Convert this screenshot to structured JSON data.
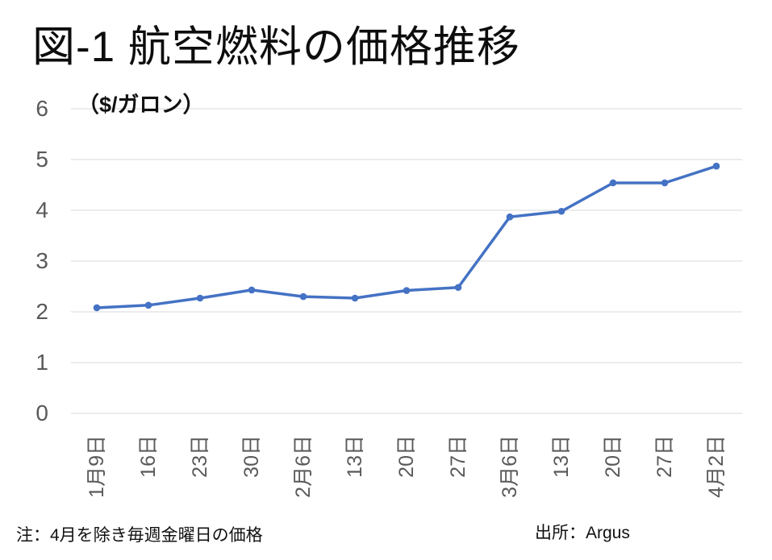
{
  "chart_data": {
    "type": "line",
    "title": "図-1 航空燃料の価格推移",
    "unit_label": "（$/ガロン）",
    "categories": [
      "1月9日",
      "16日",
      "23日",
      "30日",
      "2月6日",
      "13日",
      "20日",
      "27日",
      "3月6日",
      "13日",
      "20日",
      "27日",
      "4月2日"
    ],
    "values": [
      2.08,
      2.13,
      2.27,
      2.43,
      2.3,
      2.27,
      2.42,
      2.48,
      3.87,
      3.98,
      4.54,
      4.54,
      4.87
    ],
    "ylim": [
      0,
      6
    ],
    "yticks": [
      0,
      1,
      2,
      3,
      4,
      5,
      6
    ],
    "grid": true,
    "legend": "none",
    "line_color": "#4472C4",
    "marker_color": "#4472C4",
    "grid_color": "#D9D9D9",
    "axis_text_color": "#595959",
    "note": "注：4月を除き毎週金曜日の価格",
    "source": "出所：Argus"
  }
}
